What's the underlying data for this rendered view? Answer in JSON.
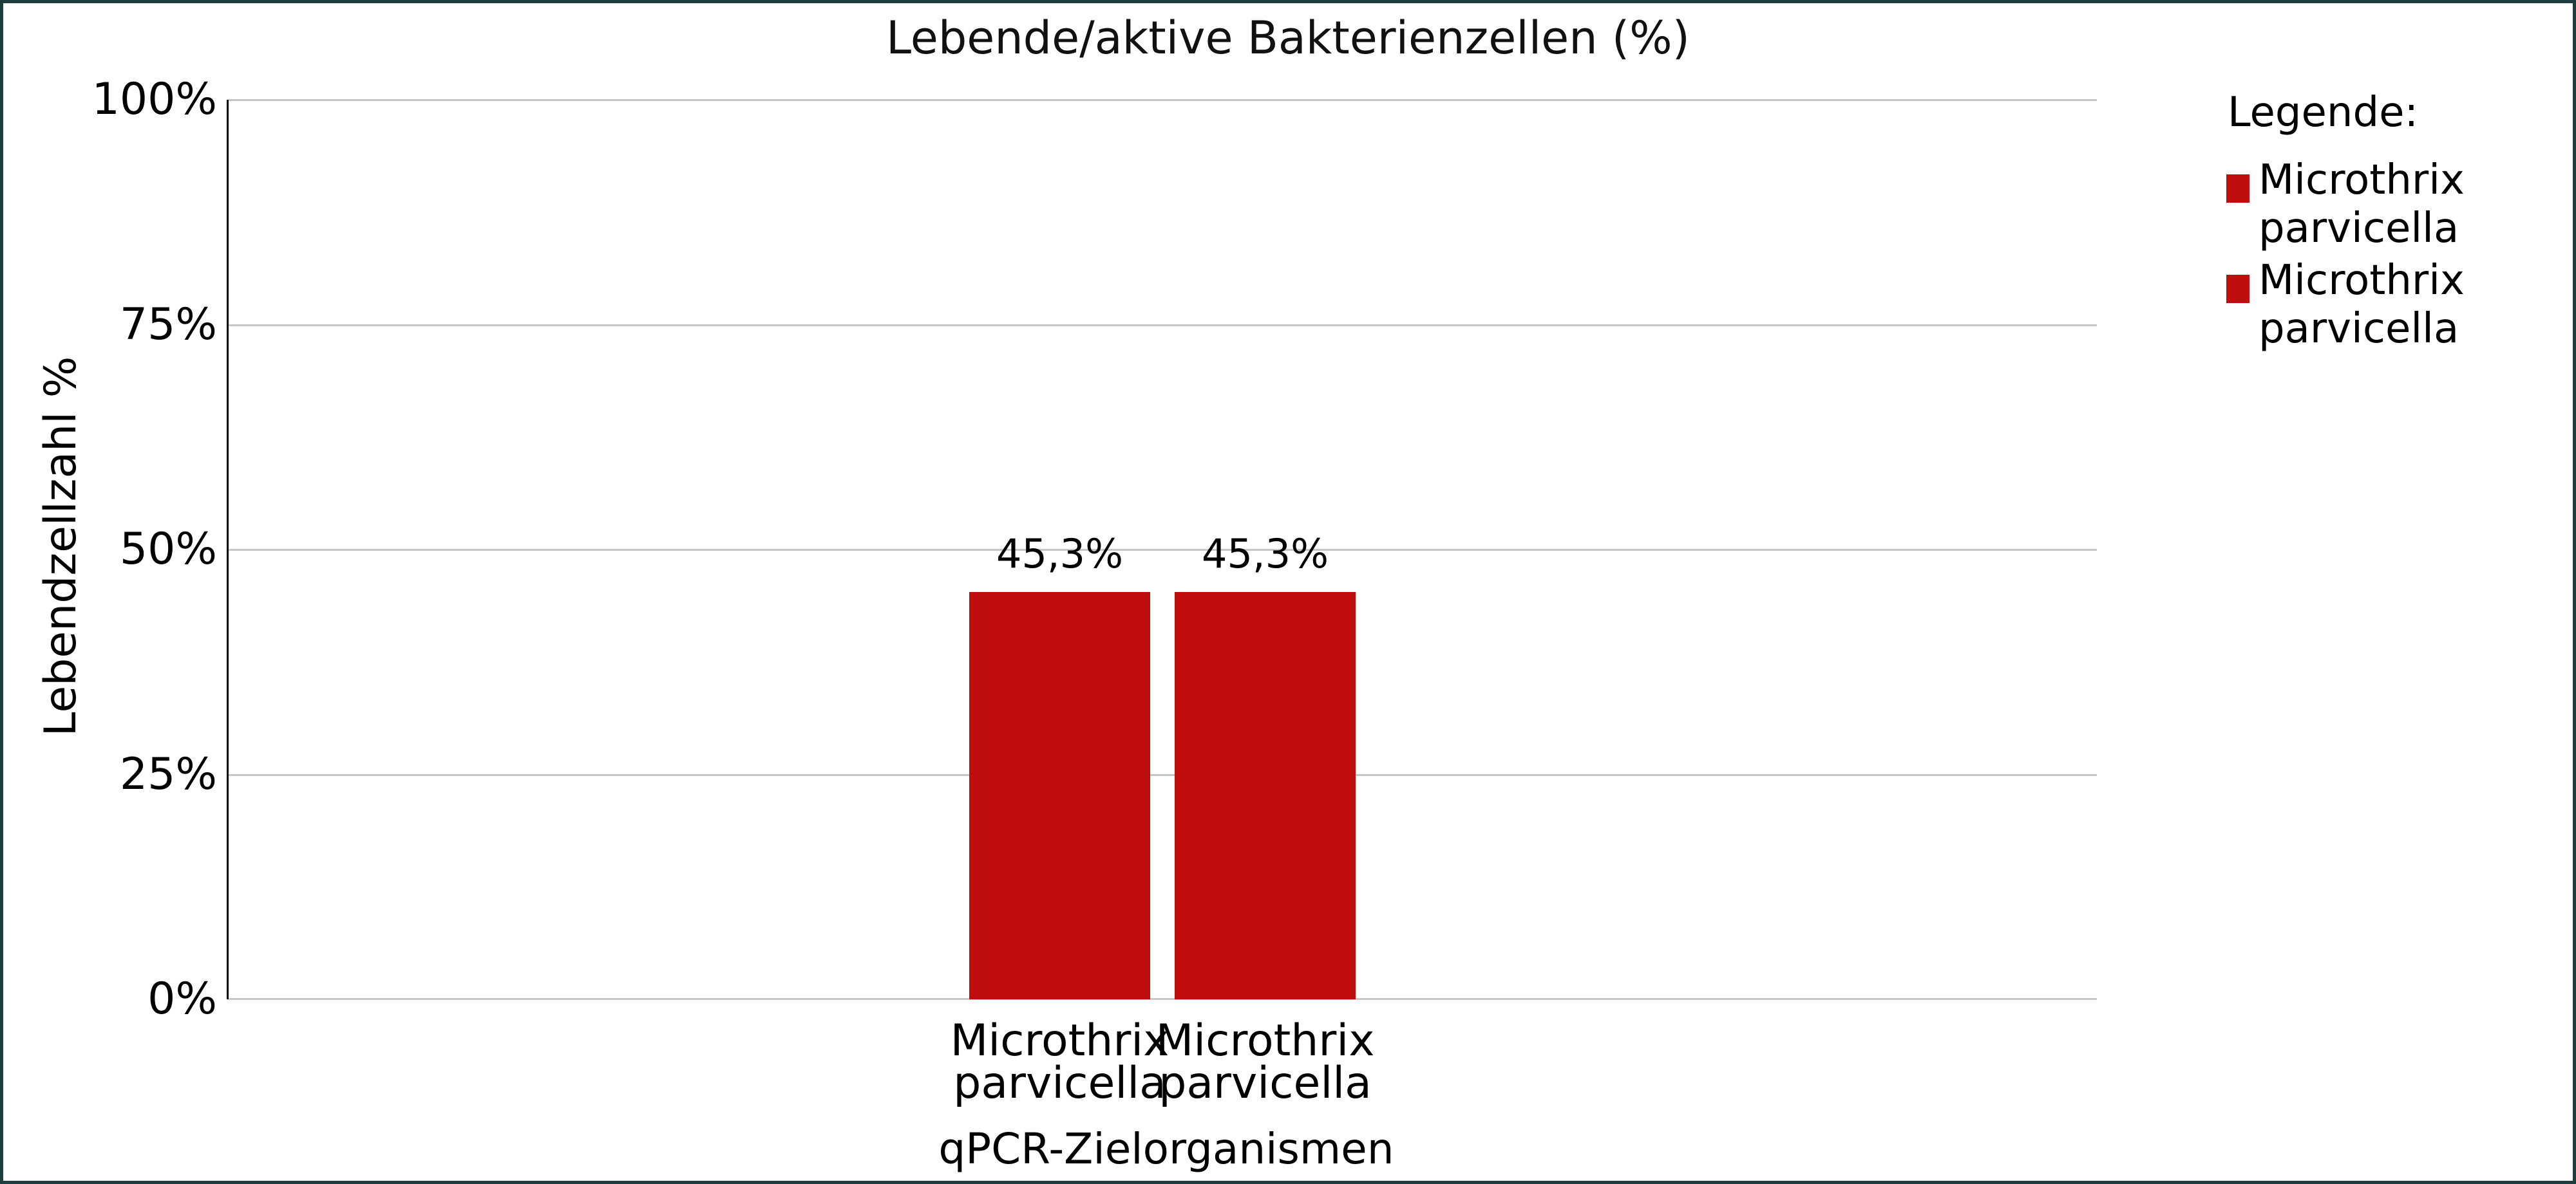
{
  "frame": {
    "border_color": "#1e3d3d"
  },
  "chart_data": {
    "type": "bar",
    "title": "Lebende/aktive Bakterienzellen (%)",
    "xlabel": "qPCR-Zielorganismen",
    "ylabel": "Lebendzellzahl %",
    "categories": [
      "Microthrix parvicella",
      "Microthrix parvicella"
    ],
    "values": [
      45.3,
      45.3
    ],
    "value_labels": [
      "45,3%",
      "45,3%"
    ],
    "bar_color": "#c00d0d",
    "ylim": [
      0,
      100
    ],
    "yticks": [
      "0%",
      "25%",
      "50%",
      "75%",
      "100%"
    ],
    "grid": true,
    "background": "#ffffff",
    "gridline_color": "#c6c6c6",
    "legend": {
      "title": "Legende:",
      "position": "top-right",
      "entries": [
        {
          "label": "Microthrix parvicella",
          "color": "#c00d0d"
        },
        {
          "label": "Microthrix parvicella",
          "color": "#c00d0d"
        }
      ]
    }
  }
}
